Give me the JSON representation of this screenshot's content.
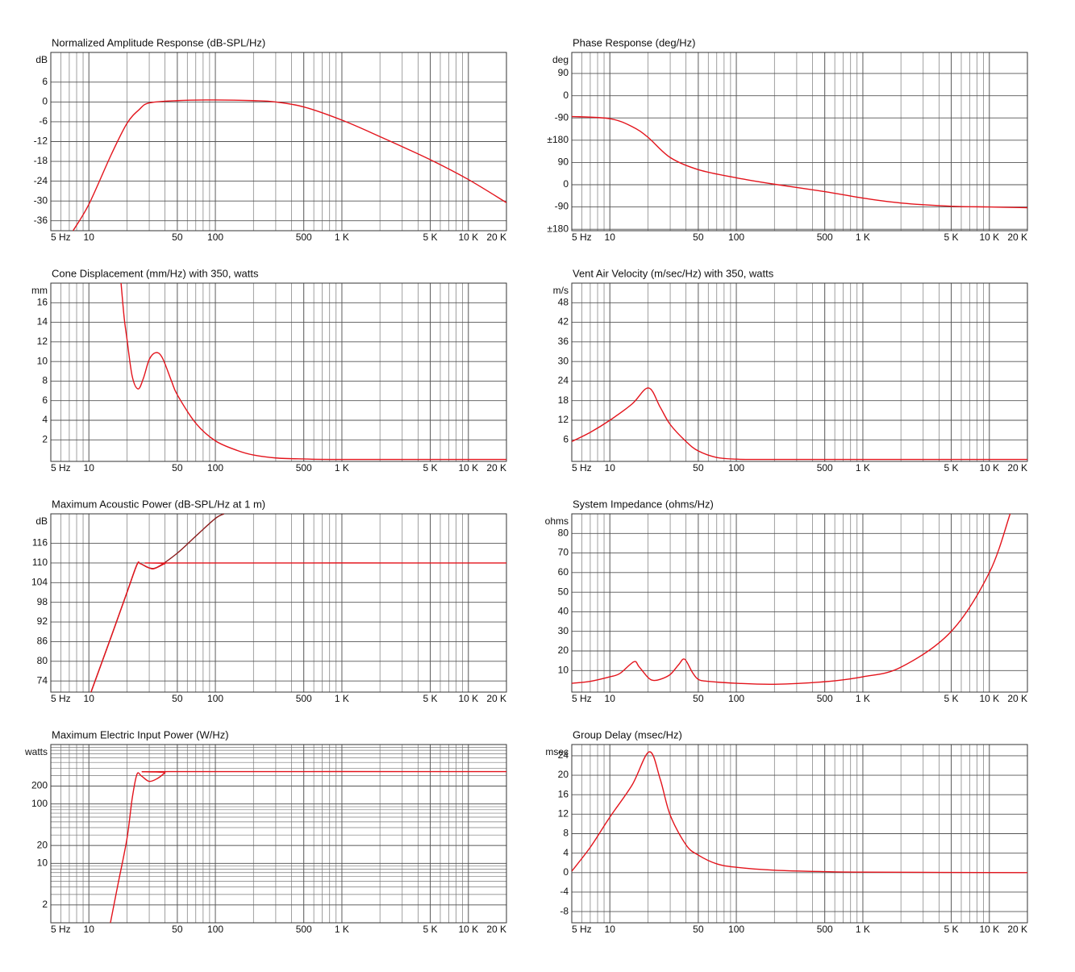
{
  "chart_data": [
    {
      "type": "line",
      "title": "Normalized Amplitude Response (dB-SPL/Hz)",
      "yunit": "dB",
      "xscale": "log",
      "grid": true,
      "xlim": [
        5,
        20000
      ],
      "xticks": [
        {
          "value": 5,
          "label": "5 Hz"
        },
        10,
        50,
        100,
        500,
        {
          "value": 1000,
          "label": "1 K"
        },
        {
          "value": 5000,
          "label": "5 K"
        },
        {
          "value": 10000,
          "label": "10 K"
        },
        {
          "value": 20000,
          "label": "20 K"
        }
      ],
      "ylim": [
        -39,
        15
      ],
      "yticks": [
        6,
        0,
        -6,
        -12,
        -18,
        -24,
        -30,
        -36
      ],
      "series": [
        {
          "color": "#e3141c",
          "x": [
            7.5,
            10,
            15,
            20,
            25,
            30,
            50,
            100,
            200,
            300,
            500,
            1000,
            2000,
            5000,
            10000,
            20000
          ],
          "values": [
            -39,
            -31,
            -16,
            -6.5,
            -2.3,
            -0.3,
            0.4,
            0.6,
            0.4,
            0,
            -1.5,
            -5.5,
            -10.5,
            -17.5,
            -23.5,
            -30.5
          ]
        }
      ]
    },
    {
      "type": "line",
      "title": "Phase Response (deg/Hz)",
      "yunit": "deg",
      "xscale": "log",
      "grid": true,
      "xlim": [
        5,
        20000
      ],
      "xticks": [
        {
          "value": 5,
          "label": "5 Hz"
        },
        10,
        50,
        100,
        500,
        {
          "value": 1000,
          "label": "1 K"
        },
        {
          "value": 5000,
          "label": "5 K"
        },
        {
          "value": 10000,
          "label": "10 K"
        },
        {
          "value": 20000,
          "label": "20 K"
        }
      ],
      "ylim": [
        -546,
        175
      ],
      "yticks": [
        90,
        0,
        -90,
        {
          "value": -180,
          "label": "±180"
        },
        {
          "value": -270,
          "label": "90"
        },
        {
          "value": -360,
          "label": "0"
        },
        {
          "value": -450,
          "label": "-90"
        },
        {
          "value": -540,
          "label": "±180"
        }
      ],
      "series": [
        {
          "color": "#e3141c",
          "x": [
            5,
            10,
            15,
            20,
            30,
            50,
            100,
            200,
            500,
            1000,
            2000,
            5000,
            10000,
            20000
          ],
          "values": [
            -84,
            -93,
            -125,
            -168,
            -250,
            -299,
            -332,
            -358,
            -388,
            -414,
            -434,
            -447,
            -450,
            -453
          ]
        }
      ]
    },
    {
      "type": "line",
      "title": "Cone Displacement (mm/Hz) with 350, watts",
      "yunit": "mm",
      "xscale": "log",
      "grid": true,
      "xlim": [
        5,
        20000
      ],
      "xticks": [
        {
          "value": 5,
          "label": "5 Hz"
        },
        10,
        50,
        100,
        500,
        {
          "value": 1000,
          "label": "1 K"
        },
        {
          "value": 5000,
          "label": "5 K"
        },
        {
          "value": 10000,
          "label": "10 K"
        },
        {
          "value": 20000,
          "label": "20 K"
        }
      ],
      "ylim": [
        -0.2,
        18
      ],
      "yticks": [
        16,
        14,
        12,
        10,
        8,
        6,
        4,
        2
      ],
      "series": [
        {
          "color": "#e3141c",
          "x": [
            17.96,
            19,
            20,
            22,
            24.5,
            27,
            30,
            33.8,
            38,
            45,
            50,
            70,
            100,
            150,
            200,
            300,
            500,
            1000,
            20000
          ],
          "values": [
            18,
            14.5,
            12.3,
            8.5,
            7.2,
            8.3,
            10.2,
            10.9,
            10.4,
            8,
            6.6,
            3.7,
            1.9,
            0.9,
            0.45,
            0.15,
            0.05,
            0,
            0
          ]
        }
      ]
    },
    {
      "type": "line",
      "title": "Vent Air Velocity (m/sec/Hz) with 350, watts",
      "yunit": "m/s",
      "xscale": "log",
      "grid": true,
      "xlim": [
        5,
        20000
      ],
      "xticks": [
        {
          "value": 5,
          "label": "5 Hz"
        },
        10,
        50,
        100,
        500,
        {
          "value": 1000,
          "label": "1 K"
        },
        {
          "value": 5000,
          "label": "5 K"
        },
        {
          "value": 10000,
          "label": "10 K"
        },
        {
          "value": 20000,
          "label": "20 K"
        }
      ],
      "ylim": [
        -0.6,
        54
      ],
      "yticks": [
        48,
        42,
        36,
        30,
        24,
        18,
        12,
        6
      ],
      "series": [
        {
          "color": "#e3141c",
          "x": [
            5,
            7,
            10,
            15,
            20.2,
            25,
            30,
            40,
            50,
            70,
            100,
            200,
            20000
          ],
          "values": [
            5.5,
            8.3,
            12,
            17,
            21.9,
            16,
            10.7,
            5.5,
            2.6,
            0.6,
            0.1,
            0,
            0
          ]
        }
      ]
    },
    {
      "type": "line",
      "title": "Maximum Acoustic Power (dB-SPL/Hz at 1 m)",
      "yunit": "dB",
      "xscale": "log",
      "grid": true,
      "xlim": [
        5,
        20000
      ],
      "xticks": [
        {
          "value": 5,
          "label": "5 Hz"
        },
        10,
        50,
        100,
        500,
        {
          "value": 1000,
          "label": "1 K"
        },
        {
          "value": 5000,
          "label": "5 K"
        },
        {
          "value": 10000,
          "label": "10 K"
        },
        {
          "value": 20000,
          "label": "20 K"
        }
      ],
      "ylim": [
        70.6,
        125
      ],
      "yticks": [
        116,
        110,
        104,
        98,
        92,
        86,
        80,
        74
      ],
      "series": [
        {
          "color": "#8b1a1a",
          "x": [
            10.4,
            15,
            20,
            24,
            25.5,
            30,
            35,
            50,
            70,
            100,
            117
          ],
          "values": [
            70.6,
            87.5,
            101,
            109.5,
            109.8,
            108.5,
            108.8,
            113,
            118.2,
            123.6,
            125
          ]
        },
        {
          "color": "#e3141c",
          "x": [
            10.4,
            15,
            20,
            24,
            25.5,
            30,
            33,
            40,
            45,
            20000
          ],
          "values": [
            70.6,
            87.5,
            101,
            109.5,
            109.8,
            108.5,
            108.3,
            109.8,
            110,
            110
          ]
        }
      ]
    },
    {
      "type": "line",
      "title": "System Impedance (ohms/Hz)",
      "yunit": "ohms",
      "xscale": "log",
      "grid": true,
      "xlim": [
        5,
        20000
      ],
      "xticks": [
        {
          "value": 5,
          "label": "5 Hz"
        },
        10,
        50,
        100,
        500,
        {
          "value": 1000,
          "label": "1 K"
        },
        {
          "value": 5000,
          "label": "5 K"
        },
        {
          "value": 10000,
          "label": "10 K"
        },
        {
          "value": 20000,
          "label": "20 K"
        }
      ],
      "ylim": [
        -1,
        90
      ],
      "yticks": [
        80,
        70,
        60,
        50,
        40,
        30,
        20,
        10
      ],
      "series": [
        {
          "color": "#e3141c",
          "x": [
            5,
            7,
            10,
            12,
            15.5,
            17,
            20,
            22,
            25,
            30,
            35,
            39,
            45,
            50,
            60,
            100,
            200,
            500,
            1000,
            2000,
            5000,
            10000,
            14600
          ],
          "values": [
            3.5,
            4.5,
            6.8,
            8.5,
            14.5,
            12,
            6.5,
            5,
            5.5,
            8,
            13,
            15.8,
            9,
            5.5,
            4.5,
            3.5,
            3,
            4.3,
            6.8,
            11.7,
            30,
            60,
            90
          ]
        }
      ]
    },
    {
      "type": "line",
      "title": "Maximum Electric Input Power (W/Hz)",
      "yunit": "watts",
      "xscale": "log",
      "yscale": "log",
      "grid": true,
      "xlim": [
        5,
        20000
      ],
      "xticks": [
        {
          "value": 5,
          "label": "5 Hz"
        },
        10,
        50,
        100,
        500,
        {
          "value": 1000,
          "label": "1 K"
        },
        {
          "value": 5000,
          "label": "5 K"
        },
        {
          "value": 10000,
          "label": "10 K"
        },
        {
          "value": 20000,
          "label": "20 K"
        }
      ],
      "ylim": [
        1,
        1000
      ],
      "yticks": [
        200,
        100,
        20,
        10,
        2
      ],
      "series": [
        {
          "color": "#e3141c",
          "x": [
            14.8,
            17,
            20,
            22,
            24,
            26,
            30,
            35,
            40,
            42,
            20000
          ],
          "values": [
            1,
            4.5,
            26,
            124,
            316,
            296,
            240,
            270,
            335,
            350,
            350
          ]
        }
      ]
    },
    {
      "type": "line",
      "title": "Group Delay (msec/Hz)",
      "yunit": "msec",
      "xscale": "log",
      "grid": true,
      "xlim": [
        5,
        20000
      ],
      "xticks": [
        {
          "value": 5,
          "label": "5 Hz"
        },
        10,
        50,
        100,
        500,
        {
          "value": 1000,
          "label": "1 K"
        },
        {
          "value": 5000,
          "label": "5 K"
        },
        {
          "value": 10000,
          "label": "10 K"
        },
        {
          "value": 20000,
          "label": "20 K"
        }
      ],
      "ylim": [
        -10.3,
        26.3
      ],
      "yticks": [
        24,
        20,
        16,
        12,
        8,
        4,
        0,
        -4,
        -8
      ],
      "series": [
        {
          "color": "#e3141c",
          "x": [
            5,
            7,
            10,
            15,
            20.5,
            25,
            30,
            40,
            50,
            70,
            100,
            200,
            500,
            1000,
            20000
          ],
          "values": [
            0.3,
            5.2,
            11.4,
            18,
            24.8,
            19.2,
            11.8,
            5.7,
            3.6,
            1.8,
            1.1,
            0.5,
            0.2,
            0.1,
            0
          ]
        }
      ]
    }
  ]
}
